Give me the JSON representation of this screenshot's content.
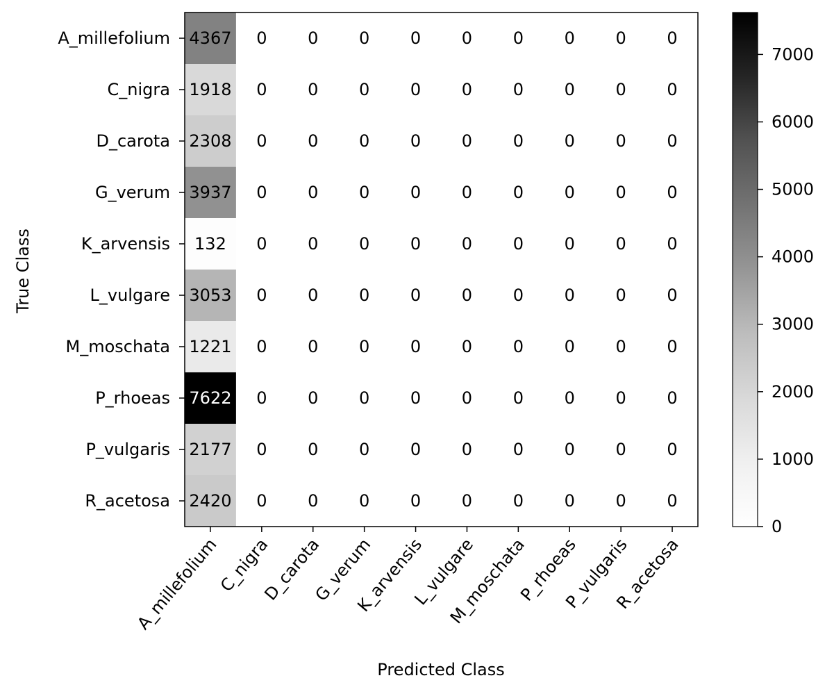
{
  "chart_data": {
    "type": "heatmap",
    "xlabel": "Predicted Class",
    "ylabel": "True Class",
    "x_categories": [
      "A_millefolium",
      "C_nigra",
      "D_carota",
      "G_verum",
      "K_arvensis",
      "L_vulgare",
      "M_moschata",
      "P_rhoeas",
      "P_vulgaris",
      "R_acetosa"
    ],
    "y_categories": [
      "A_millefolium",
      "C_nigra",
      "D_carota",
      "G_verum",
      "K_arvensis",
      "L_vulgare",
      "M_moschata",
      "P_rhoeas",
      "P_vulgaris",
      "R_acetosa"
    ],
    "values": [
      [
        4367,
        0,
        0,
        0,
        0,
        0,
        0,
        0,
        0,
        0
      ],
      [
        1918,
        0,
        0,
        0,
        0,
        0,
        0,
        0,
        0,
        0
      ],
      [
        2308,
        0,
        0,
        0,
        0,
        0,
        0,
        0,
        0,
        0
      ],
      [
        3937,
        0,
        0,
        0,
        0,
        0,
        0,
        0,
        0,
        0
      ],
      [
        132,
        0,
        0,
        0,
        0,
        0,
        0,
        0,
        0,
        0
      ],
      [
        3053,
        0,
        0,
        0,
        0,
        0,
        0,
        0,
        0,
        0
      ],
      [
        1221,
        0,
        0,
        0,
        0,
        0,
        0,
        0,
        0,
        0
      ],
      [
        7622,
        0,
        0,
        0,
        0,
        0,
        0,
        0,
        0,
        0
      ],
      [
        2177,
        0,
        0,
        0,
        0,
        0,
        0,
        0,
        0,
        0
      ],
      [
        2420,
        0,
        0,
        0,
        0,
        0,
        0,
        0,
        0,
        0
      ]
    ],
    "colormap": "Greys",
    "colorbar": {
      "range": [
        0,
        7622
      ],
      "ticks": [
        0,
        1000,
        2000,
        3000,
        4000,
        5000,
        6000,
        7000
      ]
    },
    "grid": false
  }
}
